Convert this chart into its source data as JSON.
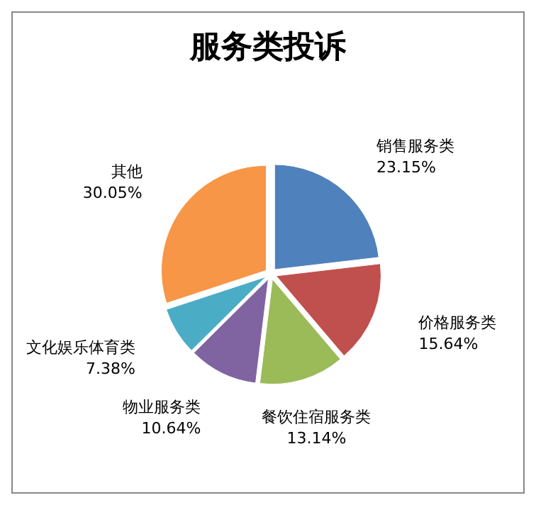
{
  "chart_data": {
    "type": "pie",
    "title": "服务类投诉",
    "categories": [
      "销售服务类",
      "价格服务类",
      "餐饮住宿服务类",
      "物业服务类",
      "文化娱乐体育类",
      "其他"
    ],
    "values": [
      23.15,
      15.64,
      13.14,
      10.64,
      7.38,
      30.05
    ],
    "value_labels": [
      "23.15%",
      "15.64%",
      "13.14%",
      "10.64%",
      "7.38%",
      "30.05%"
    ],
    "colors": [
      "#4f81bd",
      "#c0504d",
      "#9bbb59",
      "#8064a2",
      "#4bacc6",
      "#f79646"
    ],
    "legend": false
  }
}
